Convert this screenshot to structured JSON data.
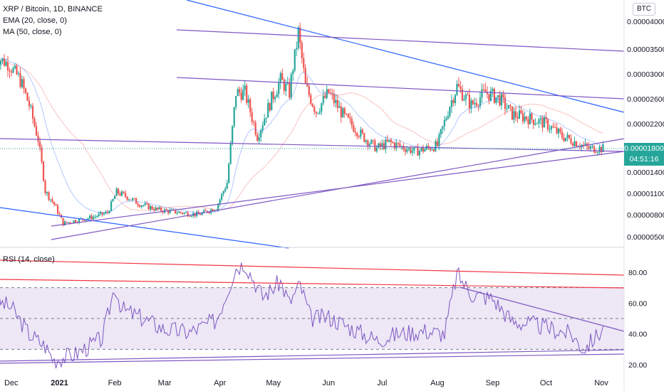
{
  "header": {
    "symbol_line": "XRP / Bitcoin, 1D, BINANCE",
    "ema_line": "EMA (20, close, 0)",
    "ma_line": "MA (50, close, 0)",
    "currency_badge": "BTC"
  },
  "rsi_panel": {
    "label": "RSI (14, close)"
  },
  "last_price": {
    "price": "0.00001800",
    "countdown": "04:51:16"
  },
  "colors": {
    "up": "#26a69a",
    "down": "#ef5350",
    "ema": "#2962ff",
    "ma": "#ef5350",
    "trend_blue": "#2962ff",
    "trend_purple": "#7e57c2",
    "rsi": "#7e57c2",
    "rsi_band": "#ede7f6",
    "rsi_red": "#f23645"
  },
  "chart_data": [
    {
      "type": "candlestick",
      "y_ticks": [
        "0.00004000",
        "0.00003500",
        "0.00003000",
        "0.00002600",
        "0.00002200",
        "0.00001800",
        "0.00001400",
        "0.00001100",
        "0.00000800",
        "0.00000500"
      ],
      "y_tick_values": [
        4e-05,
        3.5e-05,
        3e-05,
        2.6e-05,
        2.2e-05,
        1.8e-05,
        1.4e-05,
        1.1e-05,
        8e-06,
        5e-06
      ],
      "x_ticks": [
        "Dec",
        "2021",
        "Feb",
        "Mar",
        "Apr",
        "May",
        "Jun",
        "Jul",
        "Aug",
        "Sep",
        "Oct",
        "Nov"
      ],
      "last_price": 1.8e-05,
      "close_path": [
        [
          "2020-11-26",
          3.35e-05
        ],
        [
          "2020-12-03",
          3.2e-05
        ],
        [
          "2020-12-10",
          2.9e-05
        ],
        [
          "2020-12-15",
          2.5e-05
        ],
        [
          "2020-12-20",
          1.95e-05
        ],
        [
          "2020-12-24",
          1.13e-05
        ],
        [
          "2020-12-29",
          9.5e-06
        ],
        [
          "2021-01-03",
          6.8e-06
        ],
        [
          "2021-01-10",
          7.2e-06
        ],
        [
          "2021-01-20",
          7.7e-06
        ],
        [
          "2021-01-28",
          8.3e-06
        ],
        [
          "2021-02-02",
          1.12e-05
        ],
        [
          "2021-02-08",
          1.05e-05
        ],
        [
          "2021-02-15",
          9.5e-06
        ],
        [
          "2021-02-25",
          8.7e-06
        ],
        [
          "2021-03-10",
          8.3e-06
        ],
        [
          "2021-03-20",
          8e-06
        ],
        [
          "2021-03-30",
          9e-06
        ],
        [
          "2021-04-05",
          1.25e-05
        ],
        [
          "2021-04-10",
          2.7e-05
        ],
        [
          "2021-04-15",
          2.7e-05
        ],
        [
          "2021-04-22",
          2e-05
        ],
        [
          "2021-04-30",
          2.6e-05
        ],
        [
          "2021-05-05",
          2.9e-05
        ],
        [
          "2021-05-10",
          2.7e-05
        ],
        [
          "2021-05-15",
          3.8e-05
        ],
        [
          "2021-05-19",
          2.8e-05
        ],
        [
          "2021-05-25",
          2.4e-05
        ],
        [
          "2021-06-01",
          2.7e-05
        ],
        [
          "2021-06-10",
          2.3e-05
        ],
        [
          "2021-06-20",
          2e-05
        ],
        [
          "2021-06-28",
          1.8e-05
        ],
        [
          "2021-07-05",
          1.9e-05
        ],
        [
          "2021-07-20",
          1.75e-05
        ],
        [
          "2021-08-01",
          1.85e-05
        ],
        [
          "2021-08-08",
          2.5e-05
        ],
        [
          "2021-08-12",
          2.8e-05
        ],
        [
          "2021-08-20",
          2.5e-05
        ],
        [
          "2021-08-28",
          2.7e-05
        ],
        [
          "2021-09-05",
          2.6e-05
        ],
        [
          "2021-09-12",
          2.35e-05
        ],
        [
          "2021-09-20",
          2.3e-05
        ],
        [
          "2021-10-01",
          2.2e-05
        ],
        [
          "2021-10-10",
          2e-05
        ],
        [
          "2021-10-18",
          1.9e-05
        ],
        [
          "2021-10-25",
          1.8e-05
        ],
        [
          "2021-11-02",
          1.8e-05
        ]
      ]
    },
    {
      "type": "line",
      "title": "RSI (14, close)",
      "y_ticks": [
        "80.00",
        "60.00",
        "40.00",
        "20.00"
      ],
      "y_tick_values": [
        80,
        60,
        40,
        20
      ],
      "band": [
        30,
        70
      ],
      "midline": 50,
      "rsi_path": [
        [
          "2020-11-26",
          62
        ],
        [
          "2020-12-05",
          57
        ],
        [
          "2020-12-15",
          40
        ],
        [
          "2020-12-24",
          32
        ],
        [
          "2020-12-29",
          23
        ],
        [
          "2021-01-10",
          27
        ],
        [
          "2021-01-25",
          37
        ],
        [
          "2021-02-01",
          71
        ],
        [
          "2021-02-05",
          56
        ],
        [
          "2021-02-15",
          51
        ],
        [
          "2021-03-01",
          43
        ],
        [
          "2021-03-15",
          41
        ],
        [
          "2021-03-30",
          49
        ],
        [
          "2021-04-10",
          83
        ],
        [
          "2021-04-15",
          86
        ],
        [
          "2021-04-25",
          64
        ],
        [
          "2021-05-05",
          74
        ],
        [
          "2021-05-10",
          60
        ],
        [
          "2021-05-16",
          72
        ],
        [
          "2021-05-22",
          50
        ],
        [
          "2021-06-01",
          51
        ],
        [
          "2021-06-15",
          43
        ],
        [
          "2021-06-28",
          36
        ],
        [
          "2021-07-10",
          40
        ],
        [
          "2021-07-25",
          42
        ],
        [
          "2021-08-05",
          40
        ],
        [
          "2021-08-12",
          79
        ],
        [
          "2021-08-20",
          66
        ],
        [
          "2021-09-01",
          63
        ],
        [
          "2021-09-12",
          48
        ],
        [
          "2021-09-25",
          46
        ],
        [
          "2021-10-05",
          43
        ],
        [
          "2021-10-15",
          40
        ],
        [
          "2021-10-22",
          30
        ],
        [
          "2021-11-02",
          43
        ]
      ]
    }
  ]
}
